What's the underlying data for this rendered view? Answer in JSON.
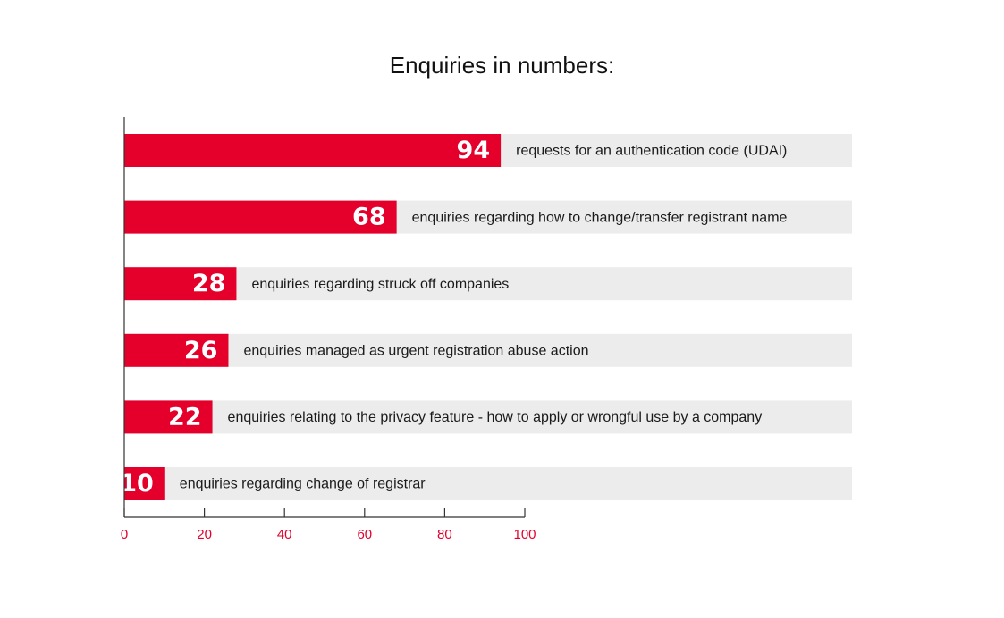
{
  "colors": {
    "bar": "#e4002b",
    "track": "#ececec",
    "axis": "#333333",
    "tick_label": "#e4002b"
  },
  "chart_data": {
    "type": "bar",
    "orientation": "horizontal",
    "title": "Enquiries in numbers:",
    "xlim": [
      0,
      100
    ],
    "x_ticks": [
      0,
      20,
      40,
      60,
      80,
      100
    ],
    "grid": false,
    "categories": [
      "requests for an authentication code (UDAI)",
      "enquiries regarding how to change/transfer registrant name",
      "enquiries regarding struck off companies",
      "enquiries managed as urgent registration abuse action",
      "enquiries relating to the privacy feature - how to apply or wrongful use by a company",
      "enquiries regarding change of registrar"
    ],
    "values": [
      94,
      68,
      28,
      26,
      22,
      10
    ]
  }
}
